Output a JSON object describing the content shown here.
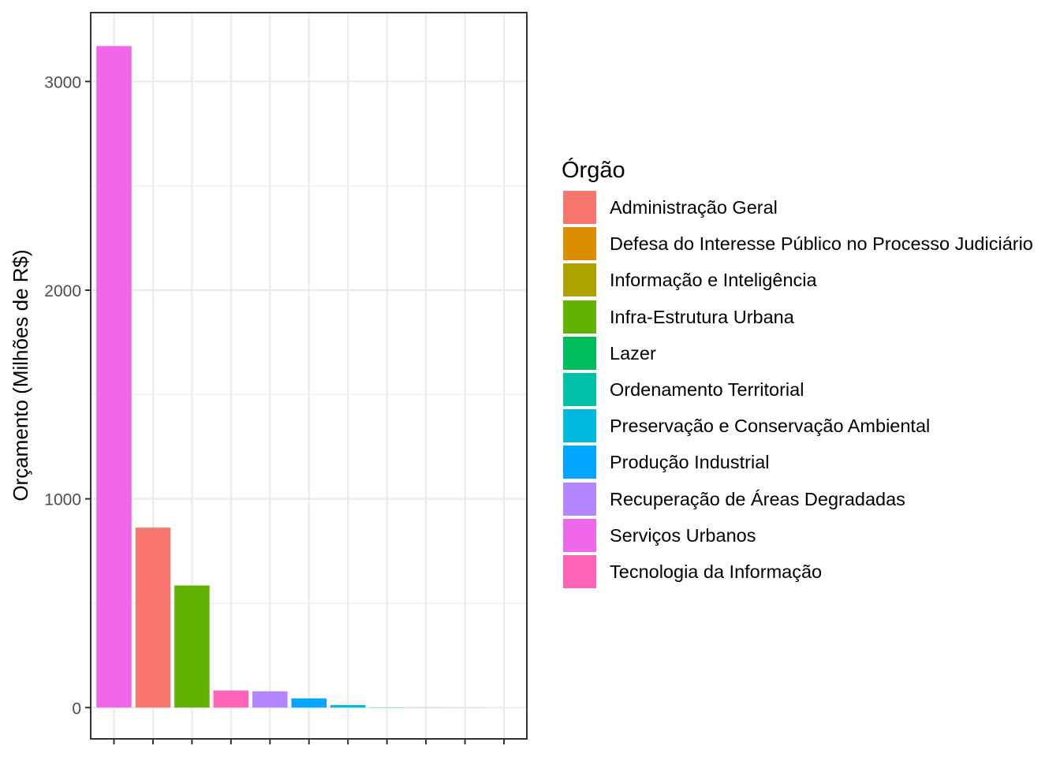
{
  "chart_data": {
    "type": "bar",
    "title": "",
    "xlabel": "",
    "ylabel": "Orçamento (Milhões de R$)",
    "ylim": [
      -150,
      3330
    ],
    "yticks": [
      0,
      1000,
      2000,
      3000
    ],
    "grid": true,
    "legend_position": "right",
    "legend_title": "Órgão",
    "legend": [
      {
        "label": "Administração Geral",
        "color": "#F8766D"
      },
      {
        "label": "Defesa do Interesse Público no Processo Judiciário",
        "color": "#DB8E00"
      },
      {
        "label": "Informação e Inteligência",
        "color": "#AEA200"
      },
      {
        "label": "Infra-Estrutura Urbana",
        "color": "#64B200"
      },
      {
        "label": "Lazer",
        "color": "#00BD5C"
      },
      {
        "label": "Ordenamento Territorial",
        "color": "#00C1A7"
      },
      {
        "label": "Preservação e Conservação Ambiental",
        "color": "#00BADE"
      },
      {
        "label": "Produção Industrial",
        "color": "#00A6FF"
      },
      {
        "label": "Recuperação de Áreas Degradadas",
        "color": "#B385FF"
      },
      {
        "label": "Serviços Urbanos",
        "color": "#EF67EB"
      },
      {
        "label": "Tecnologia da Informação",
        "color": "#FF63B6"
      }
    ],
    "bars": [
      {
        "category": "Serviços Urbanos",
        "value": 3170
      },
      {
        "category": "Administração Geral",
        "value": 862
      },
      {
        "category": "Infra-Estrutura Urbana",
        "value": 585
      },
      {
        "category": "Tecnologia da Informação",
        "value": 82
      },
      {
        "category": "Recuperação de Áreas Degradadas",
        "value": 78
      },
      {
        "category": "Produção Industrial",
        "value": 44
      },
      {
        "category": "Preservação e Conservação Ambiental",
        "value": 12
      },
      {
        "category": "Ordenamento Territorial",
        "value": 1
      },
      {
        "category": "Lazer",
        "value": 0.5
      },
      {
        "category": "Informação e Inteligência",
        "value": 0.3
      },
      {
        "category": "Defesa do Interesse Público no Processo Judiciário",
        "value": 0.1
      }
    ]
  }
}
